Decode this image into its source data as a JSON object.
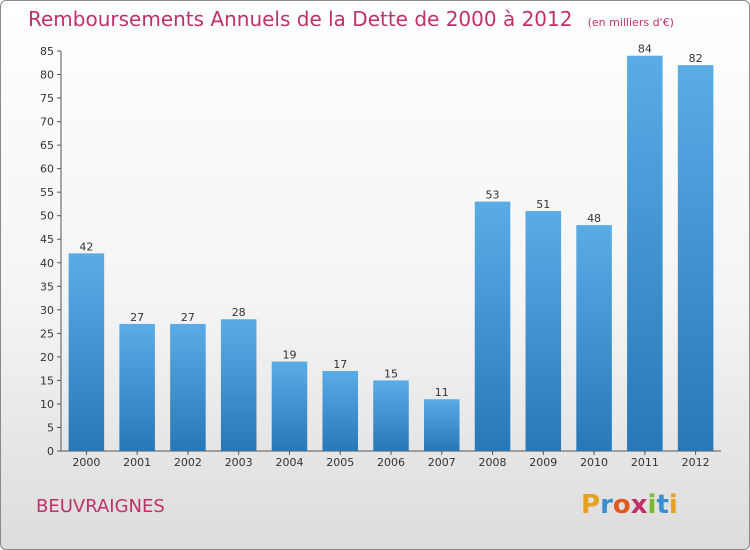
{
  "chart_data": {
    "type": "bar",
    "title": "Remboursements Annuels de la Dette de 2000 à 2012",
    "subtitle": "(en milliers d'€)",
    "categories": [
      "2000",
      "2001",
      "2002",
      "2003",
      "2004",
      "2005",
      "2006",
      "2007",
      "2008",
      "2009",
      "2010",
      "2011",
      "2012"
    ],
    "values": [
      42,
      27,
      27,
      28,
      19,
      17,
      15,
      11,
      53,
      51,
      48,
      84,
      82
    ],
    "ylim": [
      0,
      85
    ],
    "yticks": [
      0,
      5,
      10,
      15,
      20,
      25,
      30,
      35,
      40,
      45,
      50,
      55,
      60,
      65,
      70,
      75,
      80,
      85
    ],
    "xlabel": "",
    "ylabel": "",
    "grid": false,
    "colors": {
      "bar_top": "#5aace6",
      "bar_bottom": "#2878b8",
      "title": "#c0306a"
    }
  },
  "footer": {
    "commune": "BEUVRAIGNES",
    "logo_letters": [
      {
        "ch": "P",
        "color": "#e8a020"
      },
      {
        "ch": "r",
        "color": "#3a8fd0"
      },
      {
        "ch": "o",
        "color": "#e05a20"
      },
      {
        "ch": "x",
        "color": "#c0306a"
      },
      {
        "ch": "i",
        "color": "#7ab830"
      },
      {
        "ch": "t",
        "color": "#3a8fd0"
      },
      {
        "ch": "i",
        "color": "#e8a020"
      }
    ]
  }
}
